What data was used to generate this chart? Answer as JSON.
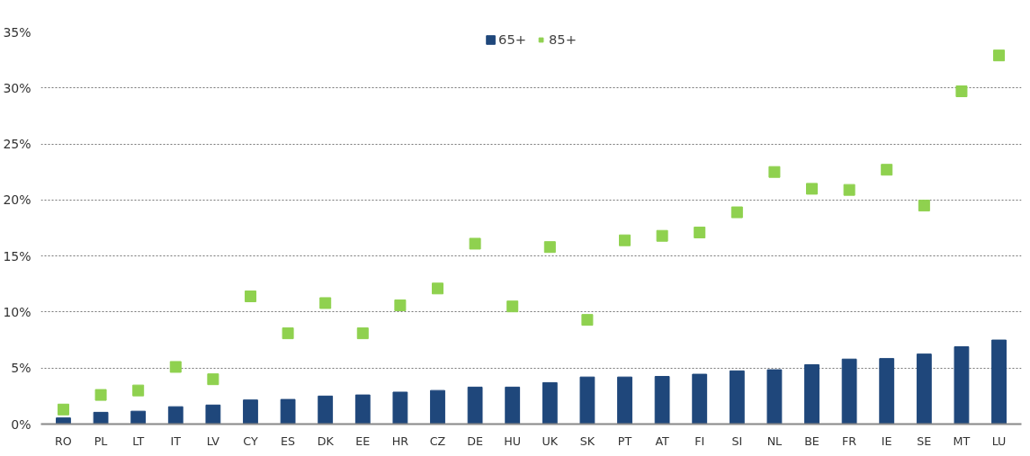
{
  "chart_data": {
    "type": "bar",
    "categories": [
      "RO",
      "PL",
      "LT",
      "IT",
      "LV",
      "CY",
      "ES",
      "DK",
      "EE",
      "HR",
      "CZ",
      "DE",
      "HU",
      "UK",
      "SK",
      "PT",
      "AT",
      "FI",
      "SI",
      "NL",
      "BE",
      "FR",
      "IE",
      "SE",
      "MT",
      "LU"
    ],
    "series": [
      {
        "name": "65+",
        "color": "#1f477b",
        "values": [
          0.55,
          1.05,
          1.15,
          1.55,
          1.7,
          2.15,
          2.2,
          2.5,
          2.6,
          2.85,
          3.0,
          3.3,
          3.3,
          3.7,
          4.2,
          4.2,
          4.25,
          4.45,
          4.75,
          4.85,
          5.3,
          5.8,
          5.85,
          6.25,
          6.9,
          7.5
        ]
      },
      {
        "name": "85+",
        "type": "scatter",
        "marker": "square",
        "color": "#8fd14f",
        "values": [
          1.3,
          2.6,
          3.0,
          5.1,
          4.0,
          11.4,
          8.1,
          10.8,
          8.1,
          10.6,
          12.1,
          16.1,
          10.5,
          15.8,
          9.3,
          16.4,
          16.8,
          17.1,
          18.9,
          22.5,
          21.0,
          20.9,
          22.7,
          19.5,
          29.7,
          32.9
        ]
      }
    ],
    "ylim": [
      0,
      35
    ],
    "yticks": [
      {
        "value": 0,
        "label": "0%"
      },
      {
        "value": 5,
        "label": "5%"
      },
      {
        "value": 10,
        "label": "10%"
      },
      {
        "value": 15,
        "label": "15%"
      },
      {
        "value": 20,
        "label": "20%"
      },
      {
        "value": 25,
        "label": "25%"
      },
      {
        "value": 30,
        "label": "30%"
      },
      {
        "value": 35,
        "label": "35%"
      }
    ],
    "grid": "y",
    "legend": "top"
  }
}
